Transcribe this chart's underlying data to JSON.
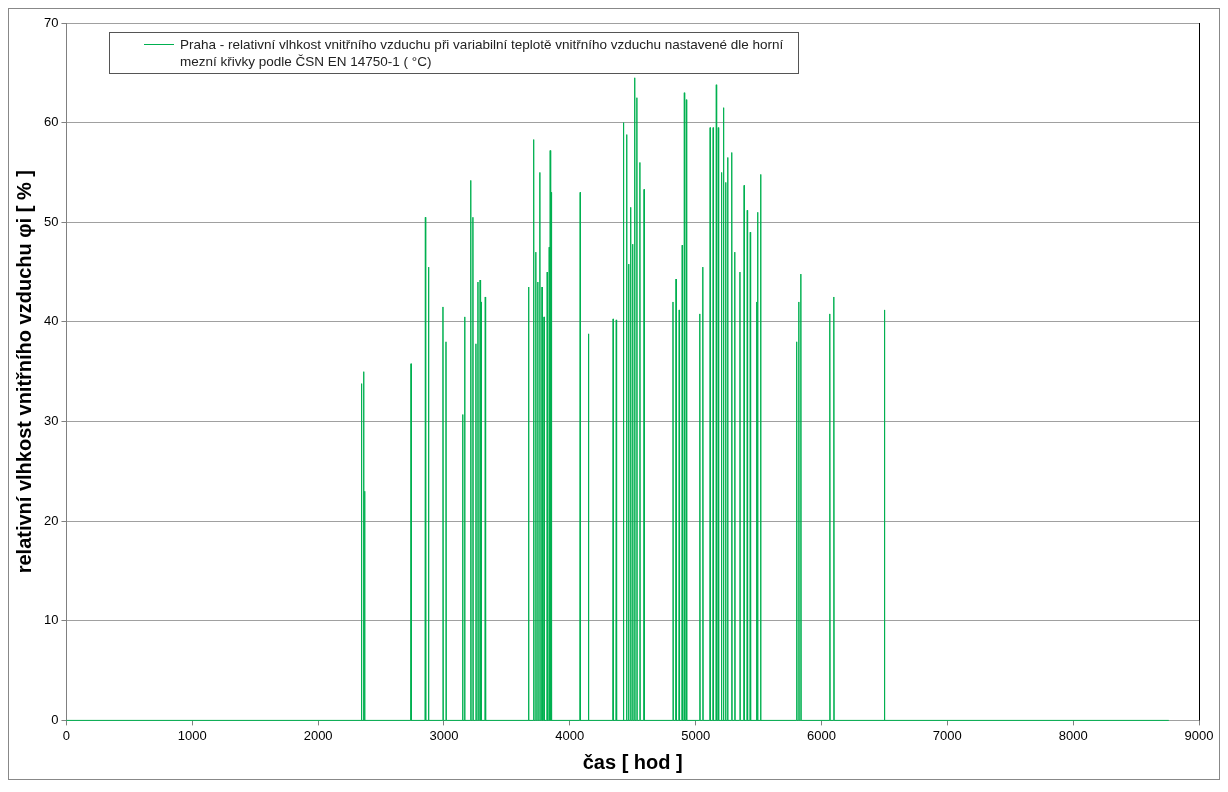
{
  "chart_data": {
    "type": "line",
    "xlabel": "čas [ hod ]",
    "ylabel": "relativní vlhkost vnitřního vzduchu φi [ % ]",
    "xlim": [
      0,
      9000
    ],
    "xticks": [
      0,
      1000,
      2000,
      3000,
      4000,
      5000,
      6000,
      7000,
      8000,
      9000
    ],
    "ylim": [
      0,
      70
    ],
    "yticks": [
      0,
      10,
      20,
      30,
      40,
      50,
      60,
      70
    ],
    "grid": "y",
    "legend": "top left",
    "marker": "none",
    "line_style": "solid",
    "series": [
      {
        "name": "Praha - relativní vlhkost vnitřního vzduchu při variabilní teplotě vnitřního vzduchu nastavené dle horní mezní křivky podle ČSN EN 14750-1 ( °C)",
        "color": "#00b050",
        "x": [
          0,
          2341,
          2344,
          2347,
          2358,
          2361,
          2364,
          2366,
          2369,
          2372,
          2735,
          2738,
          2741,
          2849,
          2852,
          2855,
          2874,
          2877,
          2880,
          2989,
          2992,
          2995,
          3013,
          3016,
          3019,
          3145,
          3148,
          3151,
          3161,
          3164,
          3167,
          3210,
          3213,
          3216,
          3227,
          3230,
          3233,
          3251,
          3254,
          3257,
          3267,
          3270,
          3273,
          3284,
          3287,
          3290,
          3292,
          3295,
          3298,
          3325,
          3328,
          3331,
          3669,
          3672,
          3675,
          3710,
          3713,
          3716,
          3727,
          3730,
          3733,
          3743,
          3746,
          3749,
          3759,
          3762,
          3765,
          3776,
          3779,
          3782,
          3792,
          3795,
          3798,
          3817,
          3820,
          3823,
          3833,
          3836,
          3839,
          3841,
          3844,
          3847,
          3849,
          3852,
          3855,
          4079,
          4082,
          4085,
          4145,
          4148,
          4151,
          4341,
          4344,
          4347,
          4366,
          4369,
          4372,
          4423,
          4426,
          4429,
          4448,
          4451,
          4454,
          4464,
          4467,
          4470,
          4481,
          4484,
          4487,
          4497,
          4500,
          4503,
          4513,
          4516,
          4519,
          4530,
          4533,
          4536,
          4554,
          4557,
          4560,
          4587,
          4590,
          4593,
          4817,
          4820,
          4823,
          4841,
          4844,
          4847,
          4866,
          4869,
          4872,
          4890,
          4893,
          4896,
          4907,
          4910,
          4913,
          4923,
          4926,
          4929,
          5030,
          5033,
          5036,
          5054,
          5057,
          5060,
          5112,
          5115,
          5118,
          5136,
          5139,
          5142,
          5161,
          5164,
          5167,
          5177,
          5180,
          5183,
          5202,
          5205,
          5208,
          5218,
          5221,
          5224,
          5235,
          5238,
          5241,
          5251,
          5254,
          5257,
          5284,
          5287,
          5290,
          5308,
          5311,
          5314,
          5349,
          5352,
          5355,
          5382,
          5385,
          5388,
          5407,
          5410,
          5413,
          5431,
          5434,
          5437,
          5481,
          5484,
          5487,
          5489,
          5492,
          5495,
          5513,
          5516,
          5519,
          5800,
          5803,
          5806,
          5817,
          5820,
          5823,
          5833,
          5836,
          5839,
          6063,
          6066,
          6069,
          6095,
          6098,
          6101,
          6497,
          6500,
          6503,
          8760
        ],
        "values": [
          0,
          0,
          33.8,
          0,
          0,
          35,
          0,
          0,
          23,
          0,
          0,
          35.8,
          0,
          0,
          50.5,
          0,
          0,
          45.5,
          0,
          0,
          41.5,
          0,
          0,
          38,
          0,
          0,
          30.7,
          0,
          0,
          40.5,
          0,
          0,
          54.2,
          0,
          0,
          50.5,
          0,
          0,
          37.8,
          0,
          0,
          44,
          0,
          0,
          44.2,
          0,
          0,
          42,
          0,
          0,
          42.5,
          0,
          0,
          43.5,
          0,
          0,
          58.3,
          0,
          0,
          47,
          0,
          0,
          44,
          0,
          0,
          55,
          0,
          0,
          43.5,
          0,
          0,
          40.5,
          0,
          0,
          45,
          0,
          0,
          47.5,
          0,
          0,
          57.2,
          0,
          0,
          53,
          0,
          0,
          53,
          0,
          0,
          38.8,
          0,
          0,
          40.3,
          0,
          0,
          40.2,
          0,
          0,
          60,
          0,
          0,
          58.8,
          0,
          0,
          45.8,
          0,
          0,
          51.5,
          0,
          0,
          47.8,
          0,
          0,
          64.5,
          0,
          0,
          62.5,
          0,
          0,
          56,
          0,
          0,
          53.3,
          0,
          0,
          42,
          0,
          0,
          44.3,
          0,
          0,
          41.2,
          0,
          0,
          47.7,
          0,
          0,
          63,
          0,
          0,
          62.3,
          0,
          0,
          40.8,
          0,
          0,
          45.5,
          0,
          0,
          59.5,
          0,
          0,
          59.5,
          0,
          0,
          63.8,
          0,
          0,
          59.5,
          0,
          0,
          55,
          0,
          0,
          61.5,
          0,
          0,
          54,
          0,
          0,
          56.5,
          0,
          0,
          57,
          0,
          0,
          47,
          0,
          0,
          45,
          0,
          0,
          53.7,
          0,
          0,
          51.2,
          0,
          0,
          49,
          0,
          0,
          42,
          0,
          0,
          51,
          0,
          0,
          54.8,
          0,
          0,
          38,
          0,
          0,
          42,
          0,
          0,
          44.8,
          0,
          0,
          40.8,
          0,
          0,
          42.5,
          0,
          0,
          41.2,
          0,
          0
        ]
      }
    ]
  }
}
